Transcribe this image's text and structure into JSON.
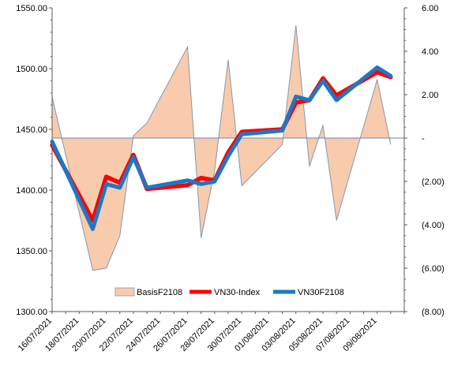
{
  "chart_data": {
    "type": "line",
    "dates": [
      "16/07/2021",
      "19/07/2021",
      "20/07/2021",
      "21/07/2021",
      "22/07/2021",
      "23/07/2021",
      "26/07/2021",
      "27/07/2021",
      "28/07/2021",
      "29/07/2021",
      "30/07/2021",
      "02/08/2021",
      "03/08/2021",
      "04/08/2021",
      "05/08/2021",
      "06/08/2021",
      "09/08/2021",
      "10/08/2021"
    ],
    "x_tick_labels": [
      "16/07/2021",
      "18/07/2021",
      "20/07/2021",
      "22/07/2021",
      "24/07/2021",
      "26/07/2021",
      "28/07/2021",
      "30/07/2021",
      "01/08/2021",
      "03/08/2021",
      "05/08/2021",
      "07/08/2021",
      "09/08/2021"
    ],
    "left_axis": {
      "min": 1300,
      "max": 1550,
      "step": 50,
      "tick_labels": [
        "1300.00",
        "1350.00",
        "1400.00",
        "1450.00",
        "1500.00",
        "1550.00"
      ]
    },
    "right_axis": {
      "min": -8,
      "max": 6,
      "step": 2,
      "tick_labels": [
        "(8.00)",
        "(6.00)",
        "(4.00)",
        "(2.00)",
        "-",
        "2.00",
        "4.00",
        "6.00"
      ]
    },
    "series": [
      {
        "name": "BasisF2108",
        "kind": "area",
        "axis": "right",
        "color": "#f8cbad",
        "border": "#8497b0",
        "x": [
          "16/07/2021",
          "19/07/2021",
          "20/07/2021",
          "21/07/2021",
          "22/07/2021",
          "23/07/2021",
          "26/07/2021",
          "27/07/2021",
          "28/07/2021",
          "29/07/2021",
          "30/07/2021",
          "02/08/2021",
          "03/08/2021",
          "04/08/2021",
          "05/08/2021",
          "06/08/2021",
          "09/08/2021",
          "10/08/2021"
        ],
        "values": [
          1.9,
          -6.1,
          -6.0,
          -4.5,
          0.1,
          0.7,
          4.2,
          -4.6,
          -1.5,
          3.6,
          -2.2,
          -0.3,
          5.2,
          -1.3,
          0.6,
          -3.8,
          2.7,
          -0.3
        ]
      },
      {
        "name": "VN30-Index",
        "kind": "line",
        "axis": "left",
        "color": "#ff0000",
        "x": [
          "16/07/2021",
          "19/07/2021",
          "20/07/2021",
          "21/07/2021",
          "22/07/2021",
          "23/07/2021",
          "26/07/2021",
          "27/07/2021",
          "28/07/2021",
          "29/07/2021",
          "30/07/2021",
          "02/08/2021",
          "03/08/2021",
          "04/08/2021",
          "05/08/2021",
          "06/08/2021",
          "09/08/2021",
          "10/08/2021"
        ],
        "values": [
          1437,
          1375,
          1411,
          1406,
          1429,
          1401,
          1404,
          1410,
          1408,
          1431,
          1448,
          1450,
          1472,
          1474,
          1492,
          1478,
          1497,
          1493
        ]
      },
      {
        "name": "VN30F2108",
        "kind": "line",
        "axis": "left",
        "color": "#1f77c4",
        "x": [
          "16/07/2021",
          "19/07/2021",
          "20/07/2021",
          "21/07/2021",
          "22/07/2021",
          "23/07/2021",
          "26/07/2021",
          "27/07/2021",
          "28/07/2021",
          "29/07/2021",
          "30/07/2021",
          "02/08/2021",
          "03/08/2021",
          "04/08/2021",
          "05/08/2021",
          "06/08/2021",
          "09/08/2021",
          "10/08/2021"
        ],
        "values": [
          1440,
          1368,
          1405,
          1402,
          1427,
          1402,
          1408,
          1405,
          1407,
          1428,
          1446,
          1449,
          1477,
          1474,
          1490,
          1474,
          1501,
          1494
        ]
      }
    ],
    "legend_position": "bottom-center",
    "grid": false
  }
}
